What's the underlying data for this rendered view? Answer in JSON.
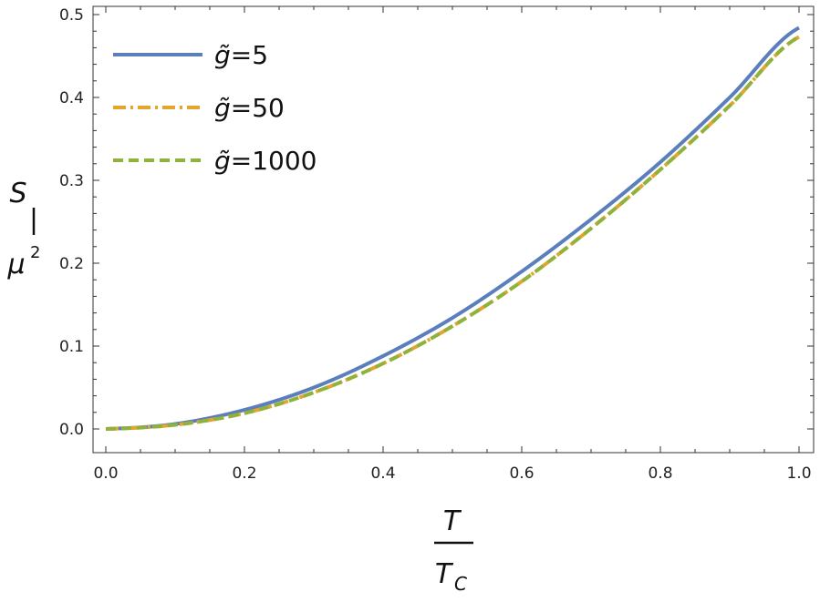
{
  "chart_data": {
    "type": "line",
    "xlim": [
      0.0,
      1.0
    ],
    "ylim": [
      0.0,
      0.5
    ],
    "x_ticks": [
      "0.0",
      "0.2",
      "0.4",
      "0.6",
      "0.8",
      "1.0"
    ],
    "y_ticks": [
      "0.0",
      "0.1",
      "0.2",
      "0.3",
      "0.4",
      "0.5"
    ],
    "xlabel": {
      "numerator": "T",
      "denominator": "T",
      "denominator_sub": "C"
    },
    "ylabel": {
      "numerator": "S",
      "denominator": "μ",
      "denominator_sup": "2"
    },
    "grid": false,
    "legend_position": "top-left",
    "x": [
      0.0,
      0.1,
      0.2,
      0.3,
      0.4,
      0.5,
      0.6,
      0.7,
      0.8,
      0.9,
      1.0
    ],
    "series": [
      {
        "name": "g̃=5",
        "name_var": "g̃",
        "name_value": "=5",
        "color": "#5b7fbd",
        "style": "solid",
        "values": [
          0.0,
          0.006,
          0.023,
          0.05,
          0.088,
          0.134,
          0.19,
          0.253,
          0.322,
          0.4,
          0.484
        ]
      },
      {
        "name": "g̃=50",
        "name_var": "g̃",
        "name_value": "=50",
        "color": "#e5a42c",
        "style": "dashdot",
        "values": [
          0.0,
          0.005,
          0.019,
          0.044,
          0.079,
          0.124,
          0.178,
          0.242,
          0.313,
          0.39,
          0.473
        ]
      },
      {
        "name": "g̃=1000",
        "name_var": "g̃",
        "name_value": "=1000",
        "color": "#8fb23a",
        "style": "dashed",
        "values": [
          0.0,
          0.005,
          0.019,
          0.044,
          0.079,
          0.124,
          0.178,
          0.242,
          0.313,
          0.39,
          0.473
        ]
      }
    ]
  }
}
